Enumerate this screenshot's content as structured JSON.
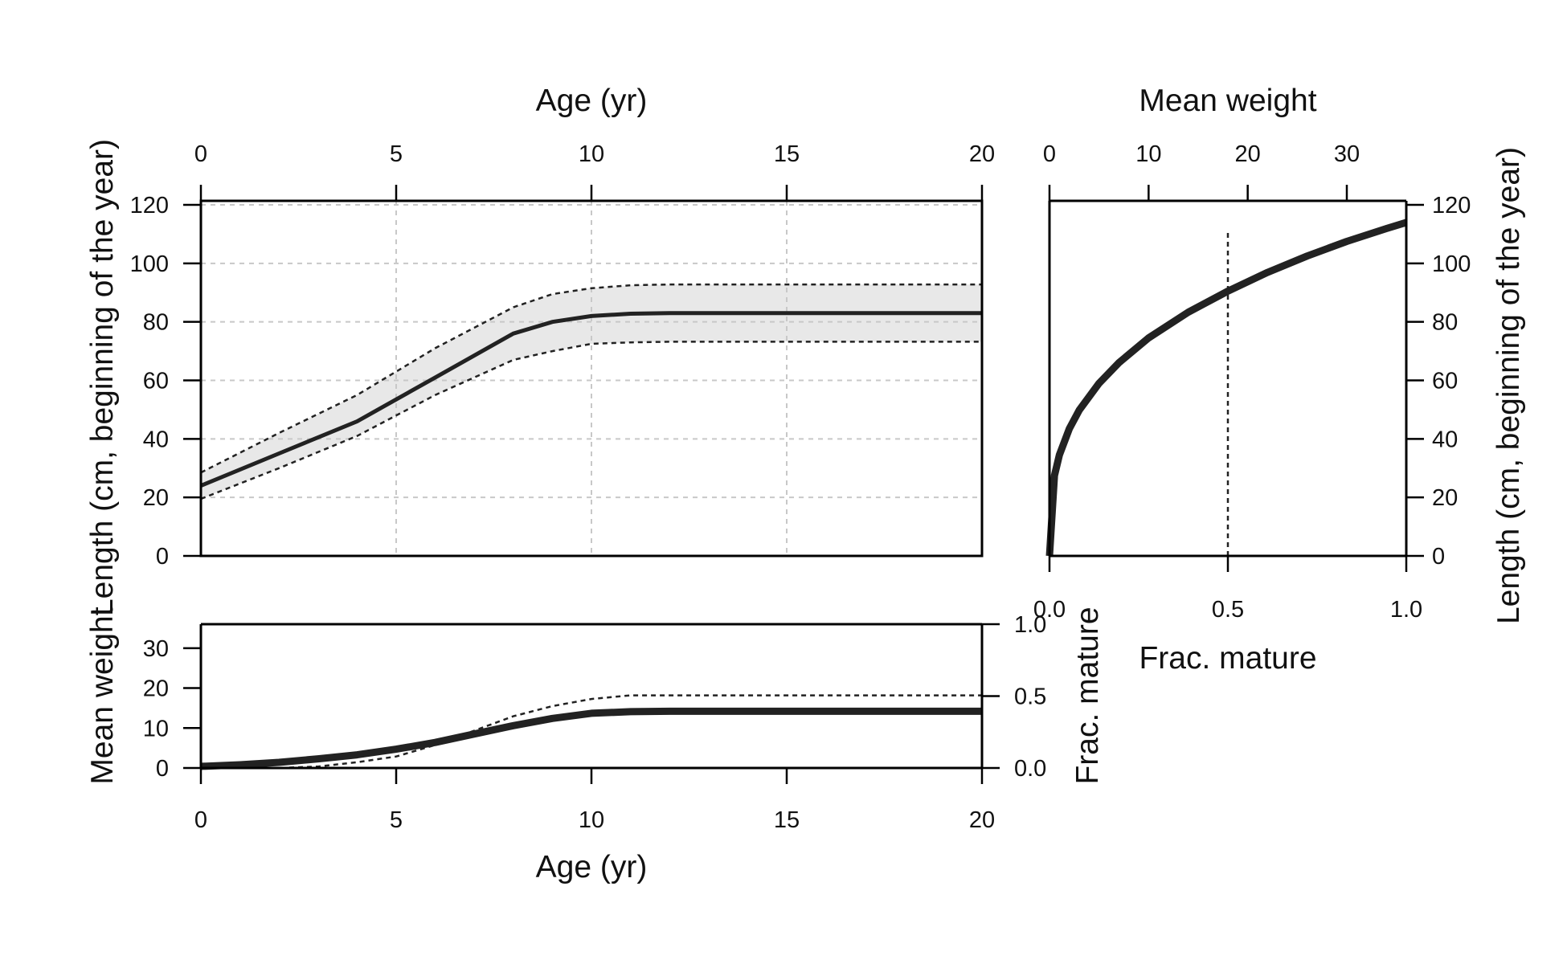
{
  "chart_data": [
    {
      "panel": "length-at-age",
      "type": "line",
      "xlabel": "Age (yr)",
      "xlabel_position": "top",
      "ylabel": "Length (cm, beginning of the year)",
      "xlim": [
        0,
        20
      ],
      "ylim": [
        0,
        120
      ],
      "xticks": [
        "0",
        "5",
        "10",
        "15",
        "20"
      ],
      "yticks": [
        "0",
        "20",
        "40",
        "60",
        "80",
        "100",
        "120"
      ],
      "grid": true,
      "band_fill": "#e8e8e8",
      "grid_color": "#c8c8c8",
      "line_color": "#222222",
      "series": [
        {
          "role": "mean",
          "style": "solid",
          "x": [
            0,
            2,
            4,
            6,
            8,
            9,
            10,
            11,
            12,
            14,
            16,
            18,
            20
          ],
          "y": [
            24,
            35,
            46,
            61,
            76,
            80,
            82,
            82.8,
            83,
            83,
            83,
            83,
            83
          ]
        },
        {
          "role": "upper",
          "style": "dashed",
          "x": [
            0,
            2,
            4,
            6,
            8,
            9,
            10,
            11,
            12,
            14,
            16,
            18,
            20
          ],
          "y": [
            28.5,
            42,
            55,
            71,
            85,
            89.5,
            91.5,
            92.5,
            92.8,
            92.8,
            92.8,
            92.8,
            92.8
          ]
        },
        {
          "role": "lower",
          "style": "dashed",
          "x": [
            0,
            2,
            4,
            6,
            8,
            9,
            10,
            11,
            12,
            14,
            16,
            18,
            20
          ],
          "y": [
            19.5,
            30,
            41,
            55,
            67,
            70,
            72.5,
            73,
            73.2,
            73.2,
            73.2,
            73.2,
            73.2
          ]
        }
      ]
    },
    {
      "panel": "length-weight-maturity",
      "type": "line",
      "xlabel_top": "Mean weight",
      "xlabel_bottom": "Frac. mature",
      "ylabel": "Length (cm, beginning of the year)",
      "xlim_top": [
        0,
        36
      ],
      "xlim_bottom": [
        0,
        1
      ],
      "ylim": [
        0,
        120
      ],
      "xticks_top": [
        "0",
        "10",
        "20",
        "30"
      ],
      "xticks_bottom": [
        "0.0",
        "0.5",
        "1.0"
      ],
      "yticks": [
        "0",
        "20",
        "40",
        "60",
        "80",
        "100",
        "120"
      ],
      "series": [
        {
          "role": "weight-length",
          "style": "solid",
          "axis": "top",
          "x": [
            0,
            0.5,
            1,
            2,
            3,
            5,
            7,
            10,
            14,
            18,
            22,
            26,
            30,
            34,
            36
          ],
          "y": [
            0,
            27.5,
            34.5,
            43.5,
            49.8,
            59,
            66,
            74.5,
            83.3,
            90.5,
            96.9,
            102.5,
            107.5,
            111.9,
            114
          ]
        },
        {
          "role": "maturity-50",
          "style": "dashed",
          "axis": "bottom",
          "x": [
            0.5,
            0.5
          ],
          "y": [
            0,
            111
          ]
        }
      ]
    },
    {
      "panel": "weight-maturity-at-age",
      "type": "line",
      "xlabel": "Age (yr)",
      "ylabel_left": "Mean weight",
      "ylabel_right": "Frac. mature",
      "xlim": [
        0,
        20
      ],
      "ylim_left": [
        0,
        36
      ],
      "ylim_right": [
        0,
        1
      ],
      "xticks": [
        "0",
        "5",
        "10",
        "15",
        "20"
      ],
      "yticks_left": [
        "0",
        "10",
        "20",
        "30"
      ],
      "yticks_right": [
        "0.0",
        "0.5",
        "1.0"
      ],
      "series": [
        {
          "role": "mean-weight",
          "style": "solid",
          "axis": "left",
          "x": [
            0,
            1,
            2,
            3,
            4,
            5,
            6,
            7,
            8,
            9,
            10,
            11,
            12,
            14,
            16,
            18,
            20
          ],
          "y": [
            0.4,
            0.8,
            1.4,
            2.3,
            3.3,
            4.7,
            6.4,
            8.5,
            10.6,
            12.4,
            13.7,
            14.1,
            14.2,
            14.2,
            14.2,
            14.2,
            14.2
          ]
        },
        {
          "role": "frac-mature",
          "style": "dashed",
          "axis": "right",
          "x": [
            0,
            2,
            3,
            4,
            5,
            6,
            7,
            8,
            9,
            10,
            11,
            12,
            14,
            16,
            18,
            20
          ],
          "y": [
            0,
            0,
            0.01,
            0.04,
            0.08,
            0.16,
            0.26,
            0.36,
            0.43,
            0.48,
            0.505,
            0.505,
            0.505,
            0.505,
            0.505,
            0.505
          ]
        }
      ]
    }
  ]
}
